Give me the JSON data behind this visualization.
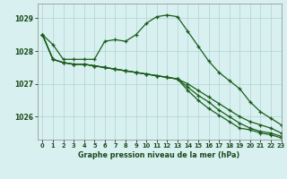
{
  "title": "Graphe pression niveau de la mer (hPa)",
  "bg_color": "#d8f0f0",
  "grid_color": "#aed4d4",
  "line_color": "#1a5c1a",
  "xlim": [
    -0.5,
    23
  ],
  "ylim": [
    1025.3,
    1029.45
  ],
  "yticks": [
    1026,
    1027,
    1028,
    1029
  ],
  "xticks": [
    0,
    1,
    2,
    3,
    4,
    5,
    6,
    7,
    8,
    9,
    10,
    11,
    12,
    13,
    14,
    15,
    16,
    17,
    18,
    19,
    20,
    21,
    22,
    23
  ],
  "series": [
    [
      1028.5,
      1028.2,
      1027.75,
      1027.75,
      1027.75,
      1027.75,
      1028.3,
      1028.35,
      1028.3,
      1028.5,
      1028.85,
      1029.05,
      1029.1,
      1029.05,
      1028.6,
      1028.15,
      1027.7,
      1027.35,
      1027.1,
      1026.85,
      1026.45,
      1026.15,
      1025.95,
      1025.75
    ],
    [
      1028.5,
      1027.75,
      1027.65,
      1027.6,
      1027.6,
      1027.55,
      1027.5,
      1027.45,
      1027.4,
      1027.35,
      1027.3,
      1027.25,
      1027.2,
      1027.15,
      1027.0,
      1026.8,
      1026.6,
      1026.4,
      1026.2,
      1026.0,
      1025.85,
      1025.75,
      1025.65,
      1025.5
    ],
    [
      1028.5,
      1027.75,
      1027.65,
      1027.6,
      1027.6,
      1027.55,
      1027.5,
      1027.45,
      1027.4,
      1027.35,
      1027.3,
      1027.25,
      1027.2,
      1027.15,
      1026.9,
      1026.65,
      1026.45,
      1026.2,
      1026.0,
      1025.8,
      1025.65,
      1025.55,
      1025.5,
      1025.4
    ],
    [
      1028.5,
      1027.75,
      1027.65,
      1027.6,
      1027.6,
      1027.55,
      1027.5,
      1027.45,
      1027.4,
      1027.35,
      1027.3,
      1027.25,
      1027.2,
      1027.15,
      1026.8,
      1026.5,
      1026.25,
      1026.05,
      1025.85,
      1025.65,
      1025.6,
      1025.5,
      1025.45,
      1025.35
    ]
  ]
}
